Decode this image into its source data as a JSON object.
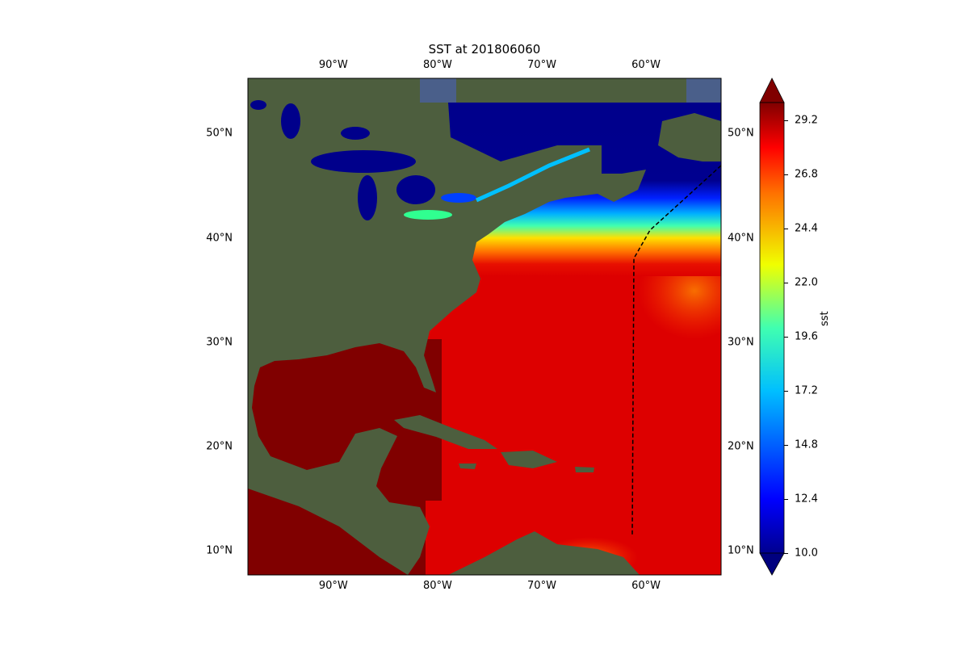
{
  "title": "SST at 201806060",
  "map": {
    "lon_range": [
      -98.2,
      -52.8
    ],
    "lat_range": [
      7.7,
      55.3
    ],
    "lon_ticks": [
      {
        "value": -90,
        "label": "90°W"
      },
      {
        "value": -80,
        "label": "80°W"
      },
      {
        "value": -70,
        "label": "70°W"
      },
      {
        "value": -60,
        "label": "60°W"
      }
    ],
    "lat_ticks": [
      {
        "value": 50,
        "label": "50°N"
      },
      {
        "value": 40,
        "label": "40°N"
      },
      {
        "value": 30,
        "label": "30°N"
      },
      {
        "value": 20,
        "label": "20°N"
      },
      {
        "value": 10,
        "label": "10°N"
      }
    ],
    "colors": {
      "land": "#4d5e3e",
      "gulf": "#800000",
      "atlantic": "#dd0000",
      "lakes": "#00008b"
    }
  },
  "colorbar": {
    "label": "sst",
    "range": [
      10,
      30
    ],
    "extend": "both",
    "colormap": "jet",
    "ticks": [
      {
        "value": 29.2,
        "label": "29.2"
      },
      {
        "value": 26.8,
        "label": "26.8"
      },
      {
        "value": 24.4,
        "label": "24.4"
      },
      {
        "value": 22.0,
        "label": "22.0"
      },
      {
        "value": 19.6,
        "label": "19.6"
      },
      {
        "value": 17.2,
        "label": "17.2"
      },
      {
        "value": 14.8,
        "label": "14.8"
      },
      {
        "value": 12.4,
        "label": "12.4"
      },
      {
        "value": 10.0,
        "label": "10.0"
      }
    ]
  }
}
